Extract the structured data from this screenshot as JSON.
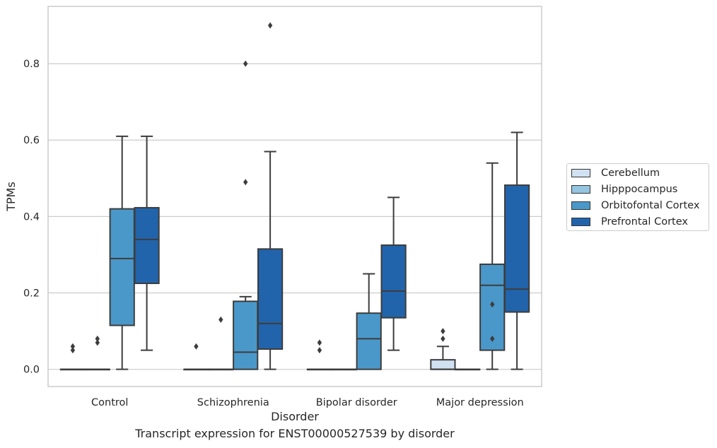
{
  "chart_data": {
    "type": "box",
    "title": "",
    "caption": "Transcript expression for ENST00000527539 by disorder",
    "xlabel": "Disorder",
    "ylabel": "TPMs",
    "ylim": [
      -0.045,
      0.95
    ],
    "yticks": [
      "0.0",
      "0.2",
      "0.4",
      "0.6",
      "0.8"
    ],
    "grid": "horizontal",
    "legend_position": "right",
    "categories": [
      "Control",
      "Schizophrenia",
      "Bipolar disorder",
      "Major depression"
    ],
    "series": [
      {
        "name": "Cerebellum",
        "color": "#d0e1f2",
        "boxes": [
          {
            "q1": 0,
            "median": 0,
            "q3": 0,
            "whisker_low": 0,
            "whisker_high": 0,
            "outliers": [
              0.05,
              0.06
            ]
          },
          {
            "q1": 0,
            "median": 0,
            "q3": 0,
            "whisker_low": 0,
            "whisker_high": 0,
            "outliers": [
              0.06
            ]
          },
          {
            "q1": 0,
            "median": 0,
            "q3": 0,
            "whisker_low": 0,
            "whisker_high": 0,
            "outliers": [
              0.05,
              0.07
            ]
          },
          {
            "q1": 0,
            "median": 0,
            "q3": 0.025,
            "whisker_low": 0,
            "whisker_high": 0.06,
            "outliers": [
              0.08,
              0.1
            ]
          }
        ]
      },
      {
        "name": "Hipppocampus",
        "color": "#94c4df",
        "boxes": [
          {
            "q1": 0,
            "median": 0,
            "q3": 0,
            "whisker_low": 0,
            "whisker_high": 0,
            "outliers": [
              0.07,
              0.08
            ]
          },
          {
            "q1": 0,
            "median": 0,
            "q3": 0,
            "whisker_low": 0,
            "whisker_high": 0,
            "outliers": [
              0.13
            ]
          },
          {
            "q1": 0,
            "median": 0,
            "q3": 0,
            "whisker_low": 0,
            "whisker_high": 0,
            "outliers": []
          },
          {
            "q1": 0,
            "median": 0,
            "q3": 0,
            "whisker_low": 0,
            "whisker_high": 0,
            "outliers": []
          }
        ]
      },
      {
        "name": "Orbitofontal Cortex",
        "color": "#4a98c9",
        "boxes": [
          {
            "q1": 0.115,
            "median": 0.29,
            "q3": 0.42,
            "whisker_low": 0,
            "whisker_high": 0.61,
            "outliers": []
          },
          {
            "q1": 0,
            "median": 0.045,
            "q3": 0.178,
            "whisker_low": 0,
            "whisker_high": 0.19,
            "outliers": [
              0.49,
              0.8
            ]
          },
          {
            "q1": 0,
            "median": 0.08,
            "q3": 0.147,
            "whisker_low": 0,
            "whisker_high": 0.25,
            "outliers": []
          },
          {
            "q1": 0.05,
            "median": 0.22,
            "q3": 0.275,
            "whisker_low": 0,
            "whisker_high": 0.54,
            "outliers": [
              0.08,
              0.17
            ]
          }
        ]
      },
      {
        "name": "Prefrontal Cortex",
        "color": "#2164ab",
        "boxes": [
          {
            "q1": 0.225,
            "median": 0.34,
            "q3": 0.423,
            "whisker_low": 0.05,
            "whisker_high": 0.61,
            "outliers": []
          },
          {
            "q1": 0.053,
            "median": 0.12,
            "q3": 0.315,
            "whisker_low": 0,
            "whisker_high": 0.57,
            "outliers": [
              0.9
            ]
          },
          {
            "q1": 0.135,
            "median": 0.205,
            "q3": 0.325,
            "whisker_low": 0.05,
            "whisker_high": 0.45,
            "outliers": []
          },
          {
            "q1": 0.15,
            "median": 0.21,
            "q3": 0.482,
            "whisker_low": 0,
            "whisker_high": 0.62,
            "outliers": []
          }
        ]
      }
    ]
  }
}
